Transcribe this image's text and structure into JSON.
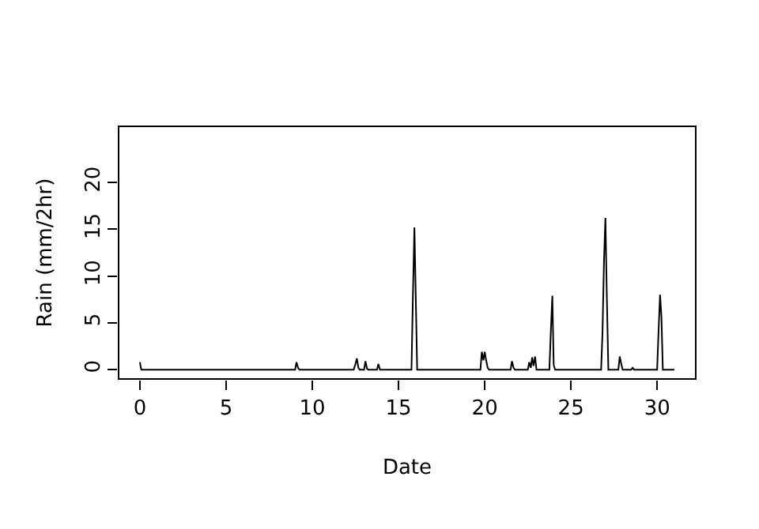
{
  "chart_data": {
    "type": "line",
    "xlabel": "Date",
    "ylabel": "Rain (mm/2hr)",
    "xlim": [
      -1.24,
      32.24
    ],
    "ylim": [
      -1,
      26
    ],
    "xticks": [
      0,
      5,
      10,
      15,
      20,
      25,
      30
    ],
    "yticks": [
      0,
      5,
      10,
      15,
      20
    ],
    "legend": false,
    "line_style": "solid",
    "marker": "none",
    "series": [
      {
        "color": "#000000",
        "x": [
          0,
          0.04,
          0.08,
          0.17,
          0.25,
          9.0,
          9.08,
          9.17,
          9.25,
          12.4,
          12.5,
          12.58,
          12.67,
          12.75,
          13.0,
          13.08,
          13.17,
          13.25,
          13.75,
          13.83,
          13.92,
          15.75,
          15.83,
          15.92,
          16.0,
          16.08,
          16.17,
          19.75,
          19.83,
          19.92,
          20.0,
          20.08,
          20.17,
          20.25,
          21.5,
          21.58,
          21.67,
          21.75,
          22.5,
          22.58,
          22.67,
          22.75,
          22.83,
          22.92,
          23.0,
          23.75,
          23.83,
          23.92,
          24.0,
          24.08,
          26.75,
          26.83,
          26.92,
          27.0,
          27.08,
          27.17,
          27.75,
          27.83,
          27.92,
          28.0,
          28.5,
          28.58,
          28.67,
          30.0,
          30.08,
          30.17,
          30.25,
          30.33,
          31.0
        ],
        "values": [
          0.8,
          0.3,
          0,
          0,
          0,
          0,
          0.8,
          0.2,
          0,
          0,
          0.6,
          1.2,
          0.2,
          0,
          0,
          0.9,
          0.1,
          0,
          0,
          0.6,
          0,
          0,
          7.6,
          15.2,
          7.6,
          0,
          0,
          0,
          1.9,
          1.0,
          1.9,
          1.0,
          0.2,
          0,
          0,
          0.9,
          0.2,
          0,
          0,
          0.8,
          0.2,
          1.3,
          0.4,
          1.4,
          0,
          0,
          3.9,
          7.9,
          0.5,
          0,
          0,
          3.9,
          11.8,
          16.2,
          8.0,
          0,
          0,
          1.4,
          0.6,
          0,
          0,
          0.2,
          0,
          0,
          4.0,
          8.0,
          5.6,
          0,
          0
        ]
      }
    ]
  }
}
